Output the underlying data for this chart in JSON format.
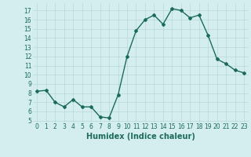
{
  "x": [
    0,
    1,
    2,
    3,
    4,
    5,
    6,
    7,
    8,
    9,
    10,
    11,
    12,
    13,
    14,
    15,
    16,
    17,
    18,
    19,
    20,
    21,
    22,
    23
  ],
  "y": [
    8.2,
    8.3,
    7.0,
    6.5,
    7.3,
    6.5,
    6.5,
    5.4,
    5.3,
    7.8,
    12.0,
    14.8,
    16.0,
    16.5,
    15.5,
    17.2,
    17.0,
    16.2,
    16.5,
    14.3,
    11.7,
    11.2,
    10.5,
    10.2
  ],
  "line_color": "#1a6b5a",
  "marker": "D",
  "marker_size": 2,
  "bg_color": "#d4eeee",
  "grid_color": "#b8d8d8",
  "xlabel": "Humidex (Indice chaleur)",
  "ylim": [
    4.8,
    17.8
  ],
  "xlim": [
    -0.5,
    23.5
  ],
  "yticks": [
    5,
    6,
    7,
    8,
    9,
    10,
    11,
    12,
    13,
    14,
    15,
    16,
    17
  ],
  "xticks": [
    0,
    1,
    2,
    3,
    4,
    5,
    6,
    7,
    8,
    9,
    10,
    11,
    12,
    13,
    14,
    15,
    16,
    17,
    18,
    19,
    20,
    21,
    22,
    23
  ],
  "tick_fontsize": 5.5,
  "xlabel_fontsize": 7,
  "tick_color": "#1a6b5a",
  "linewidth": 1.0
}
